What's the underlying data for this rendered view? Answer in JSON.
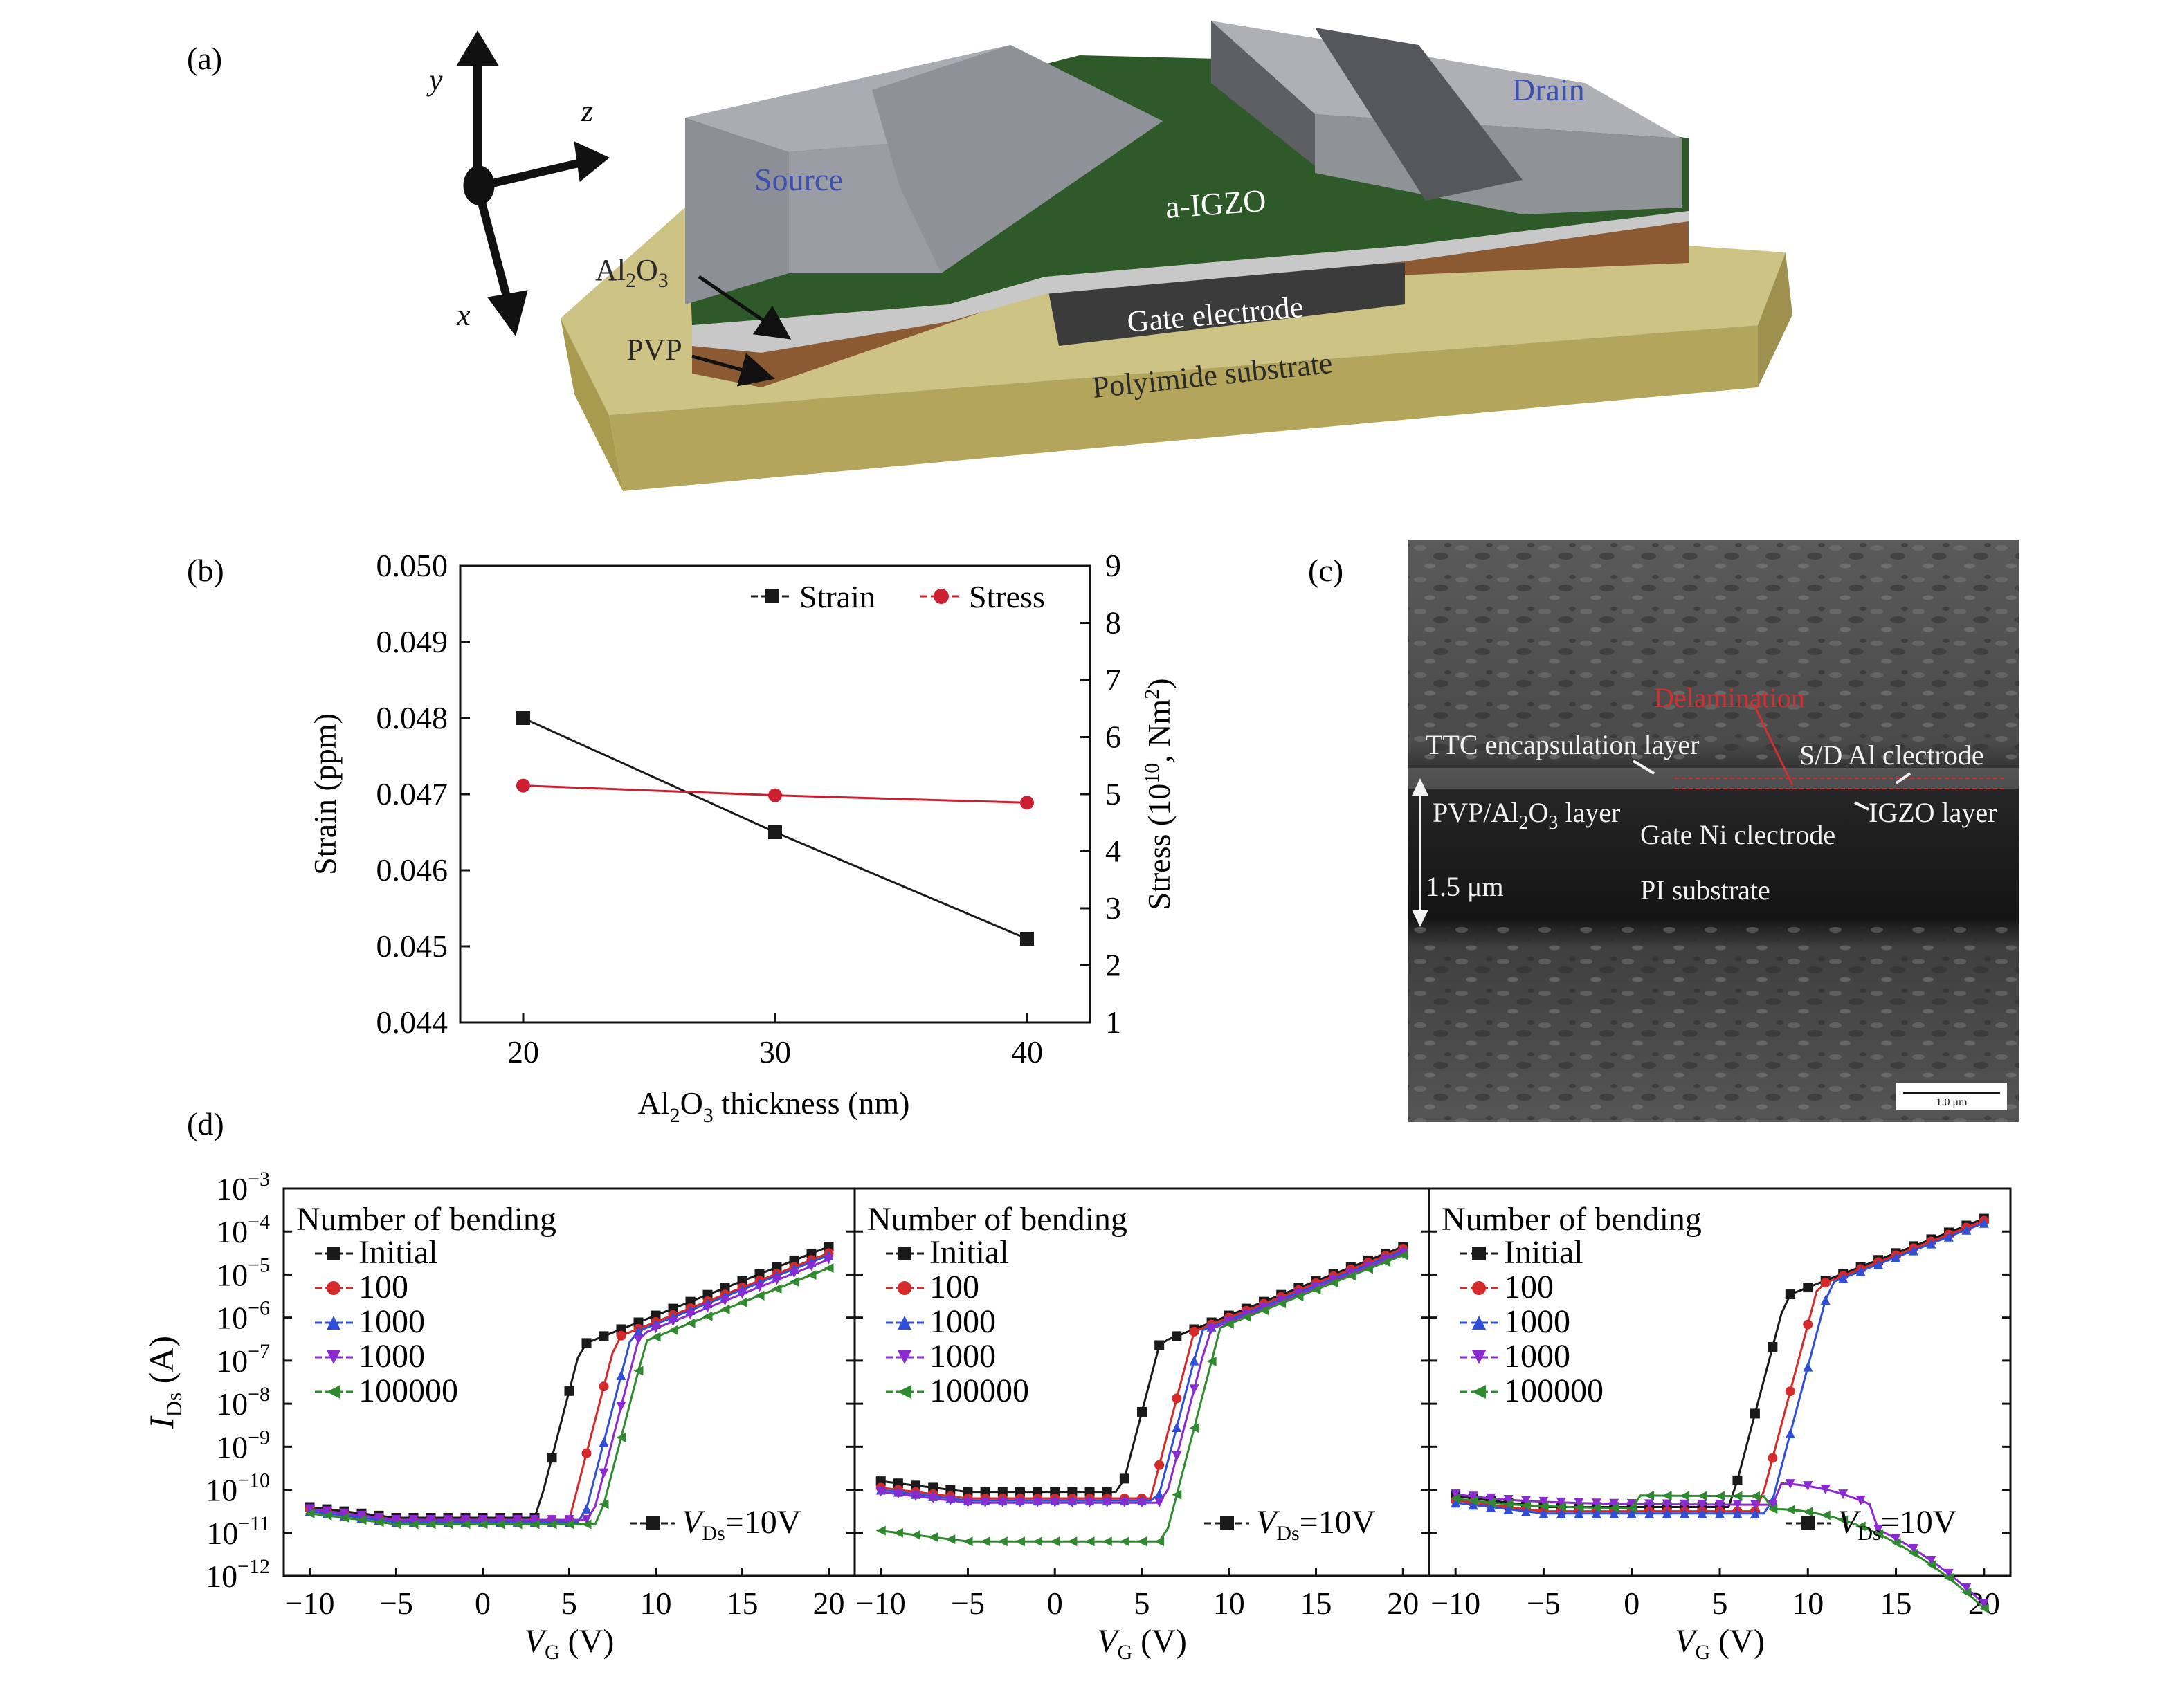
{
  "panels": {
    "a": {
      "label": "(a)",
      "axes": {
        "y": "y",
        "z": "z",
        "x": "x"
      },
      "labels": {
        "source": "Source",
        "drain": "Drain",
        "igzo": "a-IGZO",
        "al2o3_main": "Al",
        "al2o3_sub1": "2",
        "al2o3_mid": "O",
        "al2o3_sub2": "3",
        "pvp": "PVP",
        "gate": "Gate electrode",
        "substrate": "Polyimide substrate"
      }
    },
    "b": {
      "label": "(b)"
    },
    "c": {
      "label": "(c)",
      "labels": {
        "delamination": "Delamination",
        "ttc": "TTC encapsulation layer",
        "sd": "S/D Al clectrode",
        "pvp_a": "PVP/Al",
        "pvp_b": "2",
        "pvp_c": "O",
        "pvp_d": "3",
        "pvp_e": " layer",
        "gate": "Gate Ni clectrode",
        "igzo": "IGZO layer",
        "thickness": "1.5 μm",
        "pi": "PI substrate",
        "scale_bar": "1.0 μm"
      }
    },
    "d": {
      "label": "(d)",
      "y_label_main": "I",
      "y_label_sub": "Ds",
      "y_label_unit": " (A)",
      "x_label_main": "V",
      "x_label_sub": "G",
      "x_label_unit": " (V)",
      "legend_title": "Number of bending",
      "vds_main": "V",
      "vds_sub": "Ds",
      "vds_value": "=10V"
    }
  },
  "chart_data": [
    {
      "panel": "b",
      "type": "line",
      "x": [
        20,
        30,
        40
      ],
      "xlabel_parts": [
        "Al",
        "2",
        "O",
        "3",
        " thickness (nm)"
      ],
      "ylabel": "Strain (ppm)",
      "y2label_parts": [
        "Stress (10",
        "10",
        ", Nm",
        "2",
        ")"
      ],
      "xlim": [
        17.5,
        42.5
      ],
      "ylim": [
        0.044,
        0.05
      ],
      "y2lim": [
        1,
        9
      ],
      "xticks": [
        "20",
        "30",
        "40"
      ],
      "yticks": [
        "0.044",
        "0.045",
        "0.046",
        "0.047",
        "0.048",
        "0.049",
        "0.050"
      ],
      "y2ticks": [
        "1",
        "2",
        "3",
        "4",
        "5",
        "6",
        "7",
        "8",
        "9"
      ],
      "series": [
        {
          "name": "Strain",
          "axis": "left",
          "marker": "square",
          "color": "#1a1a1a",
          "y": [
            0.048,
            0.0465,
            0.0451
          ]
        },
        {
          "name": "Stress",
          "axis": "right",
          "marker": "circle",
          "color": "#cc2030",
          "y": [
            5.15,
            4.98,
            4.85
          ]
        }
      ],
      "legend_position": "top-right",
      "grid": false
    },
    {
      "panel": "d",
      "type": "line",
      "subplots": 3,
      "yscale": "log",
      "xlim": [
        -11.5,
        21.5
      ],
      "ylim_exp": [
        -12,
        -3
      ],
      "xticks": [
        "−10",
        "−5",
        "0",
        "5",
        "10",
        "15",
        "20"
      ],
      "ytick_base": "10",
      "ytick_exps": [
        "−12",
        "−11",
        "−10",
        "−9",
        "−8",
        "−7",
        "−6",
        "−5",
        "−4",
        "−3"
      ],
      "series_names": [
        "Initial",
        "100",
        "1000",
        "1000",
        "100000"
      ],
      "series_colors": [
        "#1a1a1a",
        "#d42a2a",
        "#2f4fd8",
        "#8a2ad0",
        "#2f8a2f"
      ],
      "series_markers": [
        "square",
        "circle",
        "triangle-up",
        "triangle-down",
        "triangle-left"
      ],
      "curves": [
        {
          "series": [
            {
              "off": -10.65,
              "vth": 3.1,
              "sat": -4.35
            },
            {
              "off": -10.7,
              "vth": 5.0,
              "sat": -4.5
            },
            {
              "off": -10.75,
              "vth": 5.8,
              "sat": -4.55
            },
            {
              "off": -10.7,
              "vth": 6.3,
              "sat": -4.65
            },
            {
              "off": -10.8,
              "vth": 6.7,
              "sat": -4.85
            }
          ]
        },
        {
          "series": [
            {
              "off": -10.05,
              "vth": 3.8,
              "sat": -4.35
            },
            {
              "off": -10.2,
              "vth": 5.5,
              "sat": -4.4
            },
            {
              "off": -10.25,
              "vth": 5.9,
              "sat": -4.45
            },
            {
              "off": -10.3,
              "vth": 6.3,
              "sat": -4.5
            },
            {
              "off": -11.2,
              "vth": 6.3,
              "sat": -4.55
            }
          ]
        },
        {
          "series": [
            {
              "off": -10.4,
              "vth": 5.6,
              "sat": -3.7
            },
            {
              "off": -10.5,
              "vth": 7.2,
              "sat": -3.75
            },
            {
              "off": -10.55,
              "vth": 7.8,
              "sat": -3.8
            },
            {
              "off": -10.35,
              "vth": null,
              "sat": null
            },
            {
              "off": -10.45,
              "vth": null,
              "sat": null
            }
          ]
        }
      ]
    }
  ]
}
